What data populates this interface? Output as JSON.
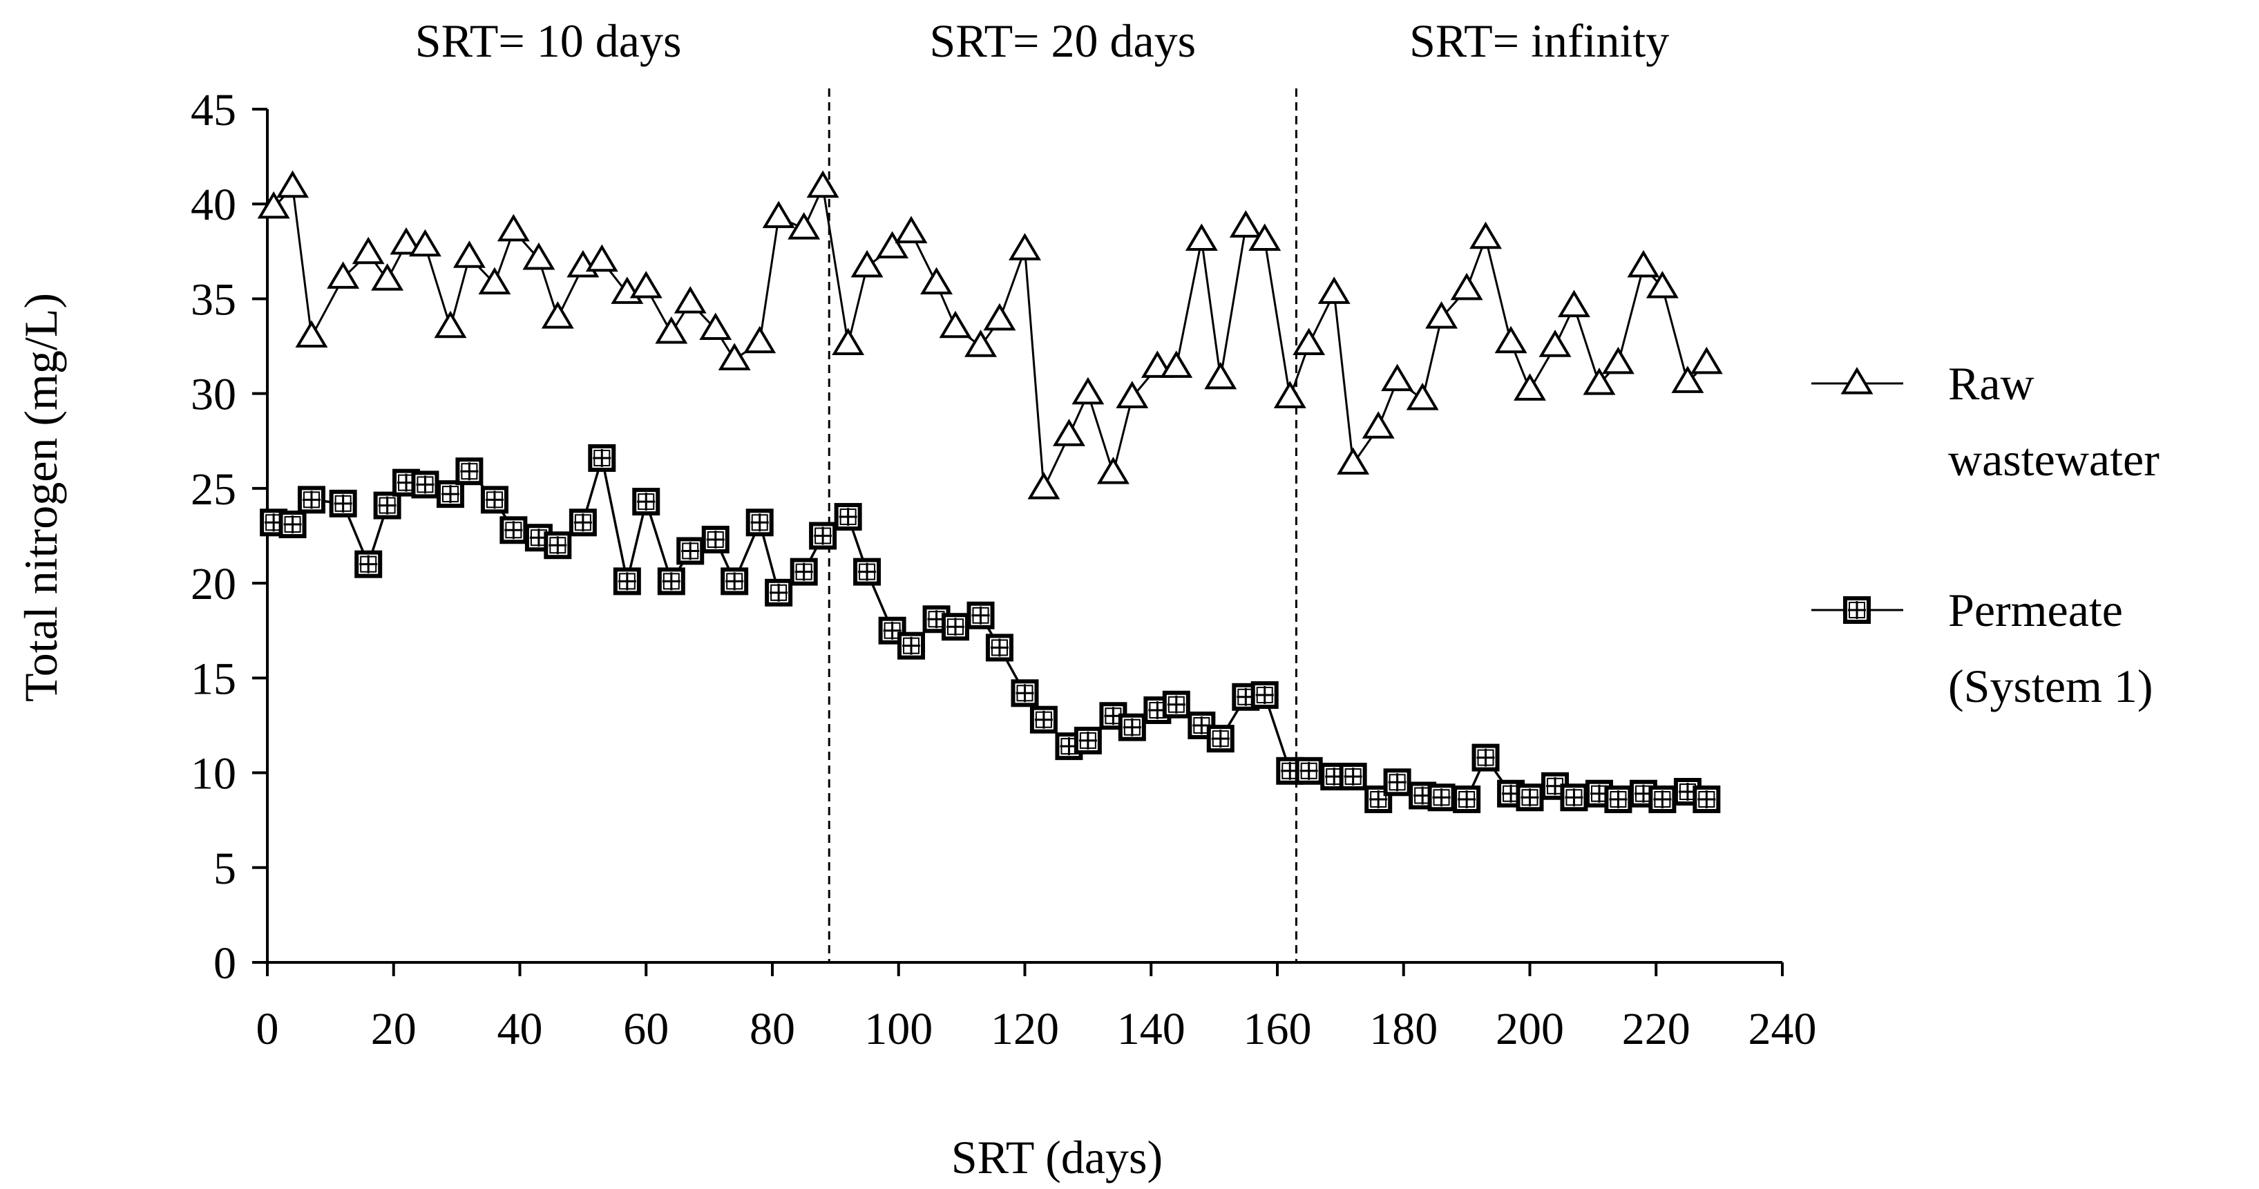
{
  "chart_data": {
    "type": "line",
    "title": "",
    "xlabel": "SRT (days)",
    "ylabel": "Total nitrogen (mg/L)",
    "xlim": [
      0,
      240
    ],
    "ylim": [
      0,
      45
    ],
    "xticks": [
      0,
      20,
      40,
      60,
      80,
      100,
      120,
      140,
      160,
      180,
      200,
      220,
      240
    ],
    "yticks": [
      0,
      5,
      10,
      15,
      20,
      25,
      30,
      35,
      40,
      45
    ],
    "grid": false,
    "legend_position": "right",
    "phases": [
      {
        "label": "SRT= 10 days",
        "start": 0,
        "end": 89
      },
      {
        "label": "SRT= 20 days",
        "start": 89,
        "end": 163
      },
      {
        "label": "SRT= infinity",
        "start": 163,
        "end": 240
      }
    ],
    "phase_dividers": [
      89,
      163
    ],
    "series": [
      {
        "name": "Raw wastewater",
        "legend_lines": [
          "Raw",
          "wastewater"
        ],
        "marker": "triangle",
        "points": [
          [
            1,
            39.8
          ],
          [
            4,
            40.9
          ],
          [
            7,
            33.0
          ],
          [
            12,
            36.1
          ],
          [
            16,
            37.4
          ],
          [
            19,
            36.0
          ],
          [
            22,
            37.9
          ],
          [
            25,
            37.8
          ],
          [
            29,
            33.5
          ],
          [
            32,
            37.2
          ],
          [
            36,
            35.8
          ],
          [
            39,
            38.6
          ],
          [
            43,
            37.1
          ],
          [
            46,
            34.0
          ],
          [
            50,
            36.7
          ],
          [
            53,
            37.0
          ],
          [
            57,
            35.3
          ],
          [
            60,
            35.6
          ],
          [
            64,
            33.2
          ],
          [
            67,
            34.8
          ],
          [
            71,
            33.4
          ],
          [
            74,
            31.8
          ],
          [
            78,
            32.7
          ],
          [
            81,
            39.3
          ],
          [
            85,
            38.7
          ],
          [
            88,
            40.9
          ],
          [
            92,
            32.6
          ],
          [
            95,
            36.7
          ],
          [
            99,
            37.7
          ],
          [
            102,
            38.5
          ],
          [
            106,
            35.8
          ],
          [
            109,
            33.5
          ],
          [
            113,
            32.5
          ],
          [
            116,
            33.9
          ],
          [
            120,
            37.6
          ],
          [
            123,
            25.0
          ],
          [
            127,
            27.8
          ],
          [
            130,
            30.0
          ],
          [
            134,
            25.8
          ],
          [
            137,
            29.8
          ],
          [
            141,
            31.4
          ],
          [
            144,
            31.4
          ],
          [
            148,
            38.1
          ],
          [
            151,
            30.8
          ],
          [
            155,
            38.8
          ],
          [
            158,
            38.1
          ],
          [
            162,
            29.8
          ],
          [
            165,
            32.6
          ],
          [
            169,
            35.3
          ],
          [
            172,
            26.3
          ],
          [
            176,
            28.2
          ],
          [
            179,
            30.7
          ],
          [
            183,
            29.7
          ],
          [
            186,
            34.0
          ],
          [
            190,
            35.5
          ],
          [
            193,
            38.2
          ],
          [
            197,
            32.7
          ],
          [
            200,
            30.2
          ],
          [
            204,
            32.5
          ],
          [
            207,
            34.6
          ],
          [
            211,
            30.5
          ],
          [
            214,
            31.6
          ],
          [
            218,
            36.7
          ],
          [
            221,
            35.6
          ],
          [
            225,
            30.6
          ],
          [
            228,
            31.6
          ]
        ]
      },
      {
        "name": "Permeate (System 1)",
        "legend_lines": [
          "Permeate",
          "(System 1)"
        ],
        "marker": "square-cross",
        "points": [
          [
            1,
            23.2
          ],
          [
            4,
            23.1
          ],
          [
            7,
            24.4
          ],
          [
            12,
            24.2
          ],
          [
            16,
            21.0
          ],
          [
            19,
            24.1
          ],
          [
            22,
            25.3
          ],
          [
            25,
            25.2
          ],
          [
            29,
            24.7
          ],
          [
            32,
            25.9
          ],
          [
            36,
            24.4
          ],
          [
            39,
            22.8
          ],
          [
            43,
            22.4
          ],
          [
            46,
            22.0
          ],
          [
            50,
            23.2
          ],
          [
            53,
            26.6
          ],
          [
            57,
            20.1
          ],
          [
            60,
            24.3
          ],
          [
            64,
            20.1
          ],
          [
            67,
            21.7
          ],
          [
            71,
            22.3
          ],
          [
            74,
            20.1
          ],
          [
            78,
            23.2
          ],
          [
            81,
            19.5
          ],
          [
            85,
            20.6
          ],
          [
            88,
            22.5
          ],
          [
            92,
            23.5
          ],
          [
            95,
            20.6
          ],
          [
            99,
            17.5
          ],
          [
            102,
            16.7
          ],
          [
            106,
            18.1
          ],
          [
            109,
            17.7
          ],
          [
            113,
            18.3
          ],
          [
            116,
            16.6
          ],
          [
            120,
            14.2
          ],
          [
            123,
            12.8
          ],
          [
            127,
            11.4
          ],
          [
            130,
            11.7
          ],
          [
            134,
            13.0
          ],
          [
            137,
            12.4
          ],
          [
            141,
            13.3
          ],
          [
            144,
            13.6
          ],
          [
            148,
            12.5
          ],
          [
            151,
            11.8
          ],
          [
            155,
            14.0
          ],
          [
            158,
            14.1
          ],
          [
            162,
            10.1
          ],
          [
            165,
            10.1
          ],
          [
            169,
            9.8
          ],
          [
            172,
            9.8
          ],
          [
            176,
            8.6
          ],
          [
            179,
            9.5
          ],
          [
            183,
            8.8
          ],
          [
            186,
            8.7
          ],
          [
            190,
            8.6
          ],
          [
            193,
            10.8
          ],
          [
            197,
            8.9
          ],
          [
            200,
            8.7
          ],
          [
            204,
            9.3
          ],
          [
            207,
            8.7
          ],
          [
            211,
            8.9
          ],
          [
            214,
            8.6
          ],
          [
            218,
            8.9
          ],
          [
            221,
            8.6
          ],
          [
            225,
            9.0
          ],
          [
            228,
            8.6
          ]
        ]
      }
    ]
  }
}
